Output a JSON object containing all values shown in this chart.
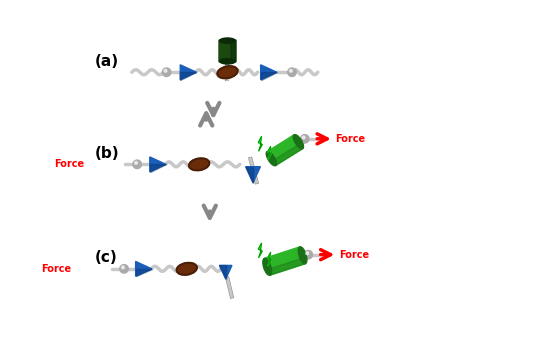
{
  "bg_color": "#ffffff",
  "label_color": "#000000",
  "force_color": "#ff0000",
  "arrow_gray": "#888888",
  "blue_cone": "#1a5eb8",
  "blue_cone_dark": "#0d3a7a",
  "brown_ellipse": "#6b2c0a",
  "brown_ellipse_dark": "#4a1e07",
  "green_cylinder": "#2db528",
  "green_cylinder_dark": "#1a7016",
  "dark_green_cylinder": "#1a4a10",
  "axle_color": "#c8c8c8",
  "axle_dark": "#999999",
  "stopper_color": "#aaaaaa",
  "labels": [
    "(a)",
    "(b)",
    "(c)"
  ],
  "figsize": [
    5.4,
    3.57
  ],
  "dpi": 100
}
